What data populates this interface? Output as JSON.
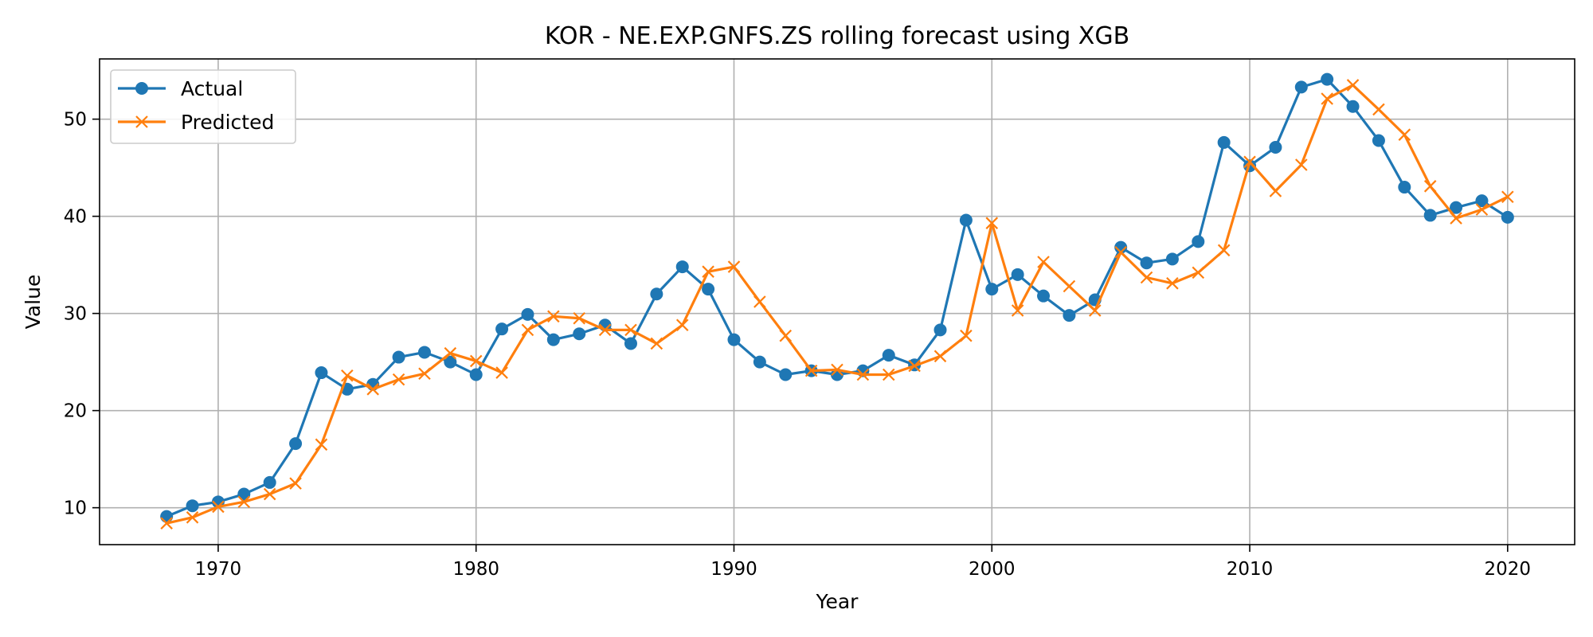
{
  "chart_data": {
    "type": "line",
    "title": "KOR - NE.EXP.GNFS.ZS rolling forecast using XGB",
    "xlabel": "Year",
    "ylabel": "Value",
    "xlim": [
      1965.4,
      2022.6
    ],
    "ylim": [
      6.2,
      56.2
    ],
    "xticks": [
      1970,
      1980,
      1990,
      2000,
      2010,
      2020
    ],
    "yticks": [
      10,
      20,
      30,
      40,
      50
    ],
    "grid": true,
    "legend_position": "top-left",
    "x": [
      1968,
      1969,
      1970,
      1971,
      1972,
      1973,
      1974,
      1975,
      1976,
      1977,
      1978,
      1979,
      1980,
      1981,
      1982,
      1983,
      1984,
      1985,
      1986,
      1987,
      1988,
      1989,
      1990,
      1991,
      1992,
      1993,
      1994,
      1995,
      1996,
      1997,
      1998,
      1999,
      2000,
      2001,
      2002,
      2003,
      2004,
      2005,
      2006,
      2007,
      2008,
      2009,
      2010,
      2011,
      2012,
      2013,
      2014,
      2015,
      2016,
      2017,
      2018,
      2019,
      2020
    ],
    "series": [
      {
        "name": "Actual",
        "color": "#1f77b4",
        "marker": "circle",
        "values": [
          9.1,
          10.2,
          10.6,
          11.4,
          12.6,
          16.6,
          23.9,
          22.2,
          22.7,
          25.5,
          26.0,
          25.0,
          23.7,
          28.4,
          29.9,
          27.3,
          27.9,
          28.8,
          26.9,
          32.0,
          34.8,
          32.5,
          27.3,
          25.0,
          23.7,
          24.1,
          23.7,
          24.1,
          25.7,
          24.7,
          28.3,
          39.6,
          32.5,
          34.0,
          31.8,
          29.8,
          31.4,
          36.8,
          35.2,
          35.6,
          37.4,
          47.6,
          45.2,
          47.1,
          53.3,
          54.1,
          51.3,
          47.8,
          43.0,
          40.1,
          40.9,
          41.6,
          39.9
        ]
      },
      {
        "name": "Predicted",
        "color": "#ff7f0e",
        "marker": "x",
        "values": [
          8.4,
          9.0,
          10.1,
          10.6,
          11.4,
          12.5,
          16.5,
          23.6,
          22.2,
          23.2,
          23.8,
          25.9,
          25.1,
          23.9,
          28.3,
          29.7,
          29.5,
          28.3,
          28.3,
          26.9,
          28.8,
          34.3,
          34.8,
          31.2,
          27.7,
          24.1,
          24.2,
          23.7,
          23.7,
          24.6,
          25.6,
          27.7,
          39.3,
          30.3,
          35.3,
          32.8,
          30.3,
          36.3,
          33.7,
          33.1,
          34.2,
          36.5,
          45.6,
          42.6,
          45.3,
          52.1,
          53.5,
          51.0,
          48.4,
          43.1,
          39.8,
          40.7,
          42.0
        ]
      }
    ]
  }
}
